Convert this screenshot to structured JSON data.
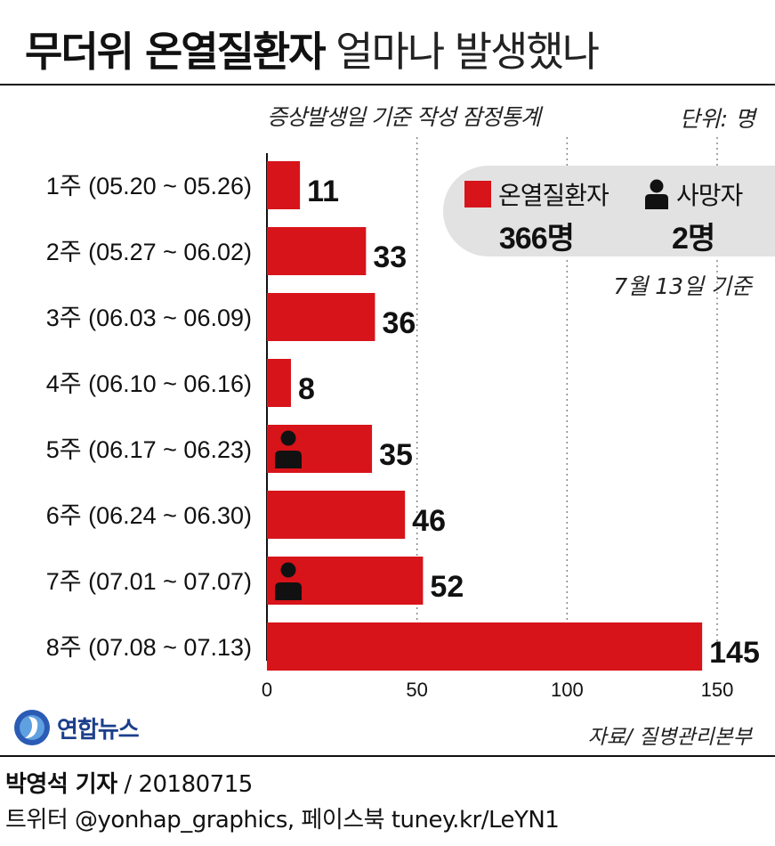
{
  "header": {
    "title_bold": "무더위 온열질환자",
    "title_light": "얼마나 발생했나",
    "subtitle": "증상발생일 기준 작성 잠정통계",
    "unit": "단위: 명"
  },
  "summary": {
    "patients_label": "온열질환자",
    "patients_value": "366명",
    "deaths_label": "사망자",
    "deaths_value": "2명",
    "as_of": "7월 13일 기준"
  },
  "chart_data": {
    "type": "bar",
    "orientation": "horizontal",
    "categories": [
      "1주 (05.20 ~ 05.26)",
      "2주 (05.27 ~ 06.02)",
      "3주 (06.03 ~ 06.09)",
      "4주 (06.10 ~ 06.16)",
      "5주 (06.17 ~ 06.23)",
      "6주 (06.24 ~ 06.30)",
      "7주 (07.01 ~ 07.07)",
      "8주 (07.08 ~ 07.13)"
    ],
    "values": [
      11,
      33,
      36,
      8,
      35,
      46,
      52,
      145
    ],
    "death_markers": [
      0,
      0,
      0,
      0,
      1,
      0,
      1,
      0
    ],
    "xlim": [
      0,
      160
    ],
    "xticks": [
      0,
      50,
      100,
      150
    ],
    "grid": true,
    "bar_color": "#d7141a",
    "marker_color": "#111111"
  },
  "footer": {
    "logo_text": "연합뉴스",
    "source": "자료/ 질병관리본부",
    "reporter": "박영석 기자",
    "date": " / 20180715",
    "social": "트위터 @yonhap_graphics, 페이스북 tuney.kr/LeYN1"
  }
}
